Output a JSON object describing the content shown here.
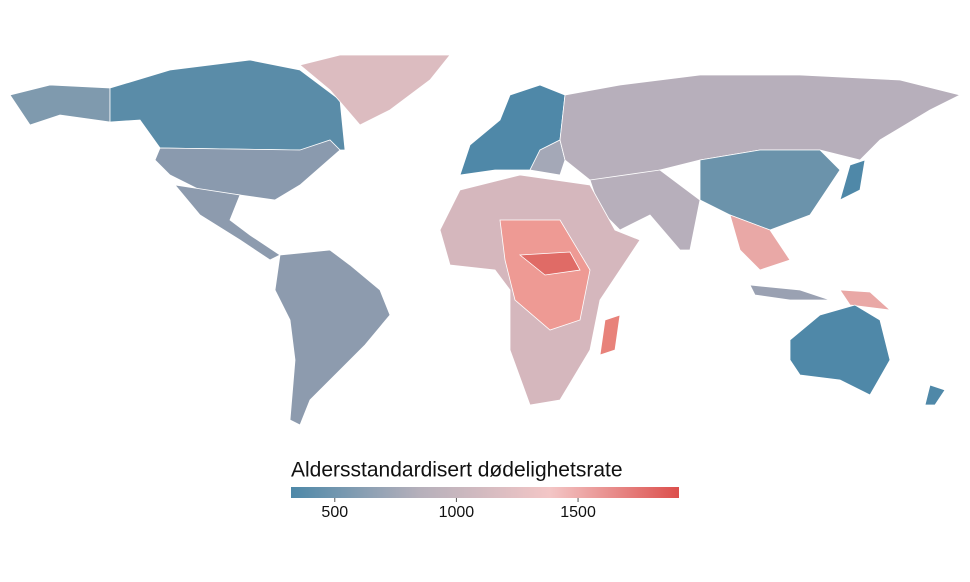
{
  "map": {
    "legend": {
      "title": "Aldersstandardisert dødelighetsrate",
      "range": [
        320,
        1915
      ],
      "ticks": [
        500,
        1000,
        1500
      ],
      "colors": [
        "#4d88a8",
        "#b6b0bb",
        "#f3c6c6",
        "#dc4f4c"
      ]
    }
  }
}
